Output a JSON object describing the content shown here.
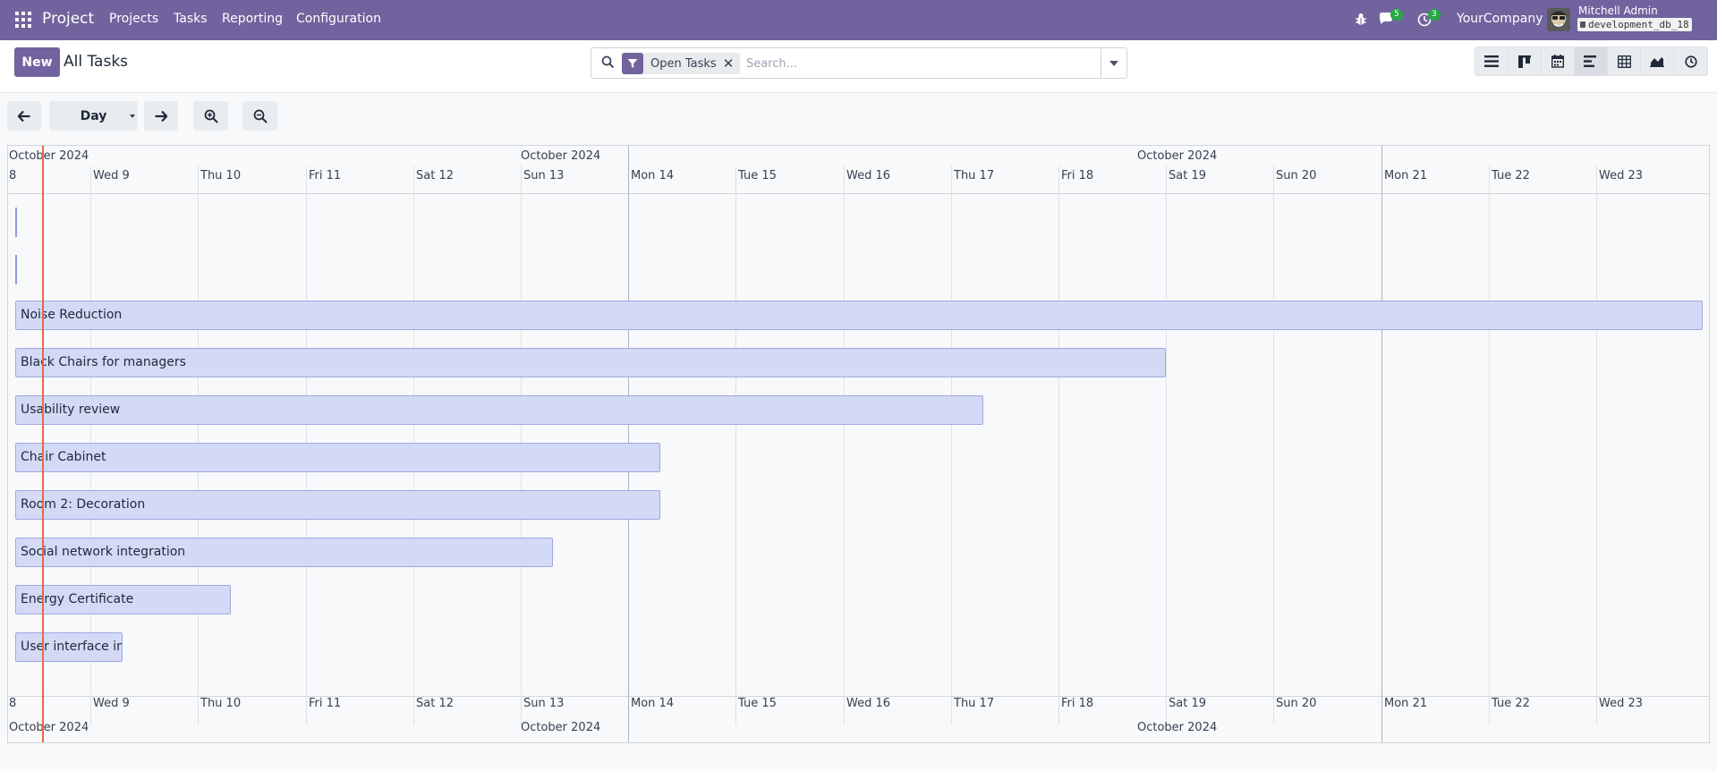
{
  "navbar": {
    "app_name": "Project",
    "menus": [
      "Projects",
      "Tasks",
      "Reporting",
      "Configuration"
    ],
    "messages_count": "5",
    "activities_count": "3",
    "company": "YourCompany",
    "user_name": "Mitchell Admin",
    "database": "development_db_18"
  },
  "control": {
    "new_label": "New",
    "title": "All Tasks",
    "facet_label": "Open Tasks",
    "search_placeholder": "Search...",
    "views": [
      "list-view-icon",
      "kanban-view-icon",
      "calendar-view-icon",
      "gantt-view-icon",
      "pivot-view-icon",
      "graph-view-icon",
      "activity-view-icon"
    ],
    "active_view": "gantt-view-icon"
  },
  "toolbar": {
    "scale": "Day"
  },
  "gantt": {
    "months": [
      "October 2024",
      "October 2024",
      "October 2024"
    ],
    "days": [
      "8",
      "Wed 9",
      "Thu 10",
      "Fri 11",
      "Sat 12",
      "Sun 13",
      "Mon 14",
      "Tue 15",
      "Wed 16",
      "Thu 17",
      "Fri 18",
      "Sat 19",
      "Sun 20",
      "Mon 21",
      "Tue 22",
      "Wed 23"
    ],
    "tasks": [
      {
        "name": "",
        "start_day": 8,
        "end_day": 8
      },
      {
        "name": "",
        "start_day": 8,
        "end_day": 8
      },
      {
        "name": "Noise Reduction",
        "start_day": 8,
        "end_day": 23
      },
      {
        "name": "Black Chairs for managers",
        "start_day": 8,
        "end_day": 18
      },
      {
        "name": "Usability review",
        "start_day": 8,
        "end_day": 17
      },
      {
        "name": "Chair Cabinet",
        "start_day": 8,
        "end_day": 14
      },
      {
        "name": "Room 2: Decoration",
        "start_day": 8,
        "end_day": 14
      },
      {
        "name": "Social network integration",
        "start_day": 8,
        "end_day": 13
      },
      {
        "name": "Energy Certificate",
        "start_day": 8,
        "end_day": 10
      },
      {
        "name": "User interface improvements",
        "start_day": 8,
        "end_day": 9
      }
    ]
  },
  "colors": {
    "brand": "#71639e",
    "pill": "#d4d9f6",
    "today": "#e8664a"
  }
}
